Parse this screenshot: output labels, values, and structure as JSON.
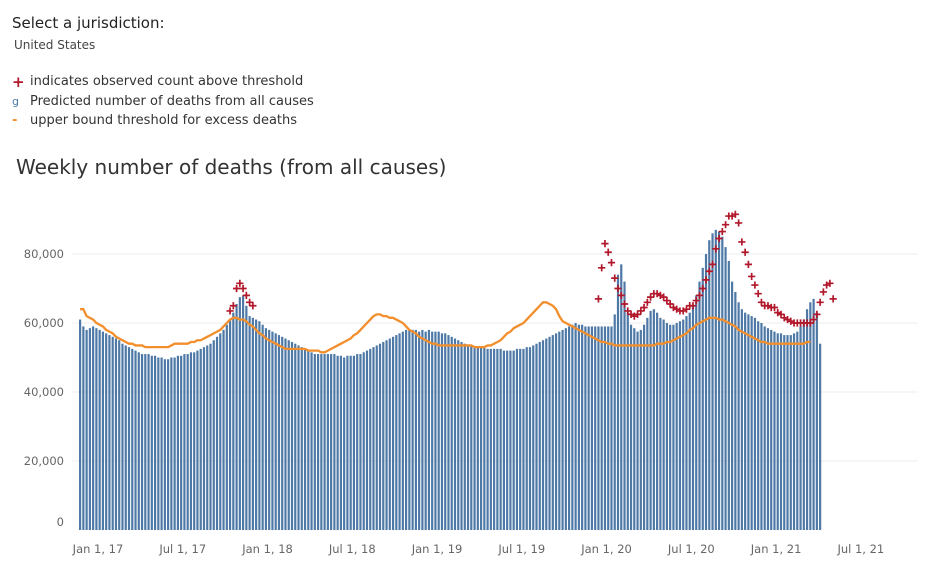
{
  "jurisdiction": {
    "label": "Select a jurisdiction:",
    "value": "United States"
  },
  "legend": [
    {
      "icon": "plus-icon",
      "symbol": "+",
      "label": "indicates observed count above threshold"
    },
    {
      "icon": "bar-glyph-icon",
      "symbol": "g",
      "label": "Predicted number of deaths from all causes"
    },
    {
      "icon": "dash-icon",
      "symbol": "-",
      "label": "upper bound threshold for excess deaths"
    }
  ],
  "colors": {
    "bar": "#4e79a7",
    "threshold": "#f28e2b",
    "marker": "#b2182b",
    "grid": "#ececec"
  },
  "chart_data": {
    "type": "bar",
    "title": "Weekly number of deaths (from all causes)",
    "xlabel": "",
    "ylabel": "",
    "ylim": [
      0,
      90000
    ],
    "yticks": [
      {
        "value": 0,
        "label": "0"
      },
      {
        "value": 20000,
        "label": "20,000"
      },
      {
        "value": 40000,
        "label": "40,000"
      },
      {
        "value": 60000,
        "label": "60,000"
      },
      {
        "value": 80000,
        "label": "80,000"
      }
    ],
    "xticks": [
      {
        "week": 0,
        "label": "Jan 1, 17"
      },
      {
        "week": 26,
        "label": "Jul 1, 17"
      },
      {
        "week": 52,
        "label": "Jan 1, 18"
      },
      {
        "week": 78,
        "label": "Jul 1, 18"
      },
      {
        "week": 104,
        "label": "Jan 1, 19"
      },
      {
        "week": 130,
        "label": "Jul 1, 19"
      },
      {
        "week": 156,
        "label": "Jan 1, 20"
      },
      {
        "week": 182,
        "label": "Jul 1, 20"
      },
      {
        "week": 208,
        "label": "Jan 1, 21"
      },
      {
        "week": 234,
        "label": "Jul 1, 21"
      }
    ],
    "grid": true,
    "series": [
      {
        "name": "Predicted number of deaths from all causes",
        "type": "bar",
        "values": [
          61000,
          59000,
          58000,
          58500,
          59000,
          58500,
          58000,
          57500,
          57000,
          56500,
          56000,
          55500,
          55000,
          54000,
          53500,
          53000,
          52500,
          52000,
          51500,
          51000,
          51000,
          51000,
          50500,
          50500,
          50000,
          50000,
          49500,
          49500,
          50000,
          50000,
          50500,
          50500,
          51000,
          51000,
          51500,
          51500,
          52000,
          52500,
          53000,
          53500,
          54000,
          55000,
          56000,
          57000,
          58000,
          59500,
          61000,
          63000,
          65500,
          67500,
          68000,
          65000,
          62000,
          61500,
          61000,
          60500,
          59500,
          58500,
          58000,
          57500,
          57000,
          56500,
          56000,
          55500,
          55000,
          54500,
          54000,
          53500,
          53000,
          52500,
          52000,
          51500,
          51000,
          51000,
          51000,
          51000,
          51000,
          51000,
          51000,
          50500,
          50500,
          50000,
          50500,
          50500,
          50500,
          51000,
          51000,
          51500,
          52000,
          52500,
          53000,
          53500,
          54000,
          54500,
          55000,
          55500,
          56000,
          56500,
          57000,
          57500,
          58000,
          58000,
          58000,
          58000,
          57500,
          58000,
          57500,
          58000,
          57500,
          57500,
          57500,
          57000,
          57000,
          56500,
          56000,
          55500,
          55000,
          54500,
          54000,
          53500,
          53500,
          53000,
          53000,
          53000,
          53000,
          52500,
          52500,
          52500,
          52500,
          52500,
          52000,
          52000,
          52000,
          52000,
          52500,
          52500,
          52500,
          53000,
          53000,
          53500,
          54000,
          54500,
          55000,
          55500,
          56000,
          56500,
          57000,
          57500,
          58000,
          58500,
          59000,
          59500,
          60000,
          59500,
          59500,
          59000,
          59000,
          59000,
          59000,
          59000,
          59000,
          59000,
          59000,
          59000,
          62500,
          74000,
          77000,
          72000,
          63000,
          59500,
          58500,
          57500,
          58000,
          59500,
          61500,
          63500,
          64000,
          63000,
          61500,
          61000,
          60000,
          59500,
          59500,
          60000,
          60500,
          61000,
          62000,
          63000,
          65000,
          68000,
          72000,
          76000,
          80000,
          84000,
          86000,
          87000,
          86500,
          85000,
          82000,
          78000,
          72000,
          69000,
          66000,
          64000,
          63000,
          62500,
          62000,
          61500,
          60500,
          60000,
          59000,
          58500,
          58000,
          57500,
          57000,
          57000,
          56500,
          56500,
          56500,
          57000,
          57500,
          59000,
          61000,
          64000,
          66000,
          67000,
          63000,
          54000
        ]
      },
      {
        "name": "upper bound threshold for excess deaths",
        "type": "line",
        "values": [
          64000,
          64000,
          62000,
          61500,
          61000,
          60000,
          59500,
          59000,
          58000,
          57500,
          57000,
          56000,
          55500,
          55000,
          54500,
          54000,
          54000,
          53500,
          53500,
          53500,
          53000,
          53000,
          53000,
          53000,
          53000,
          53000,
          53000,
          53000,
          53500,
          54000,
          54000,
          54000,
          54000,
          54000,
          54500,
          54500,
          55000,
          55000,
          55500,
          56000,
          56500,
          57000,
          57500,
          58000,
          59000,
          60000,
          61000,
          61500,
          61500,
          61000,
          61000,
          60500,
          59500,
          59000,
          58000,
          57000,
          56500,
          55500,
          55000,
          54500,
          54000,
          53500,
          53000,
          52500,
          52500,
          52500,
          52500,
          52500,
          52500,
          52500,
          52000,
          52000,
          52000,
          52000,
          51500,
          51500,
          52000,
          52500,
          53000,
          53500,
          54000,
          54500,
          55000,
          55500,
          56500,
          57000,
          58000,
          59000,
          60000,
          61000,
          62000,
          62500,
          62500,
          62000,
          62000,
          61500,
          61500,
          61000,
          60500,
          60000,
          59000,
          58000,
          57500,
          57000,
          56000,
          55500,
          55000,
          54500,
          54000,
          54000,
          53500,
          53500,
          53500,
          53500,
          53500,
          53500,
          53500,
          53500,
          53500,
          53500,
          53500,
          53000,
          53000,
          53000,
          53000,
          53500,
          53500,
          54000,
          54500,
          55000,
          56000,
          57000,
          57500,
          58500,
          59000,
          59500,
          60000,
          61000,
          62000,
          63000,
          64000,
          65000,
          66000,
          66000,
          65500,
          65000,
          64000,
          62000,
          60500,
          60000,
          59500,
          59000,
          58500,
          58000,
          57500,
          57000,
          56500,
          56000,
          55500,
          55000,
          54500,
          54500,
          54000,
          54000,
          53500,
          53500,
          53500,
          53500,
          53500,
          53500,
          53500,
          53500,
          53500,
          53500,
          53500,
          53500,
          53500,
          54000,
          54000,
          54000,
          54500,
          54500,
          55000,
          55500,
          56000,
          56500,
          57000,
          58000,
          58500,
          59500,
          60000,
          60500,
          61000,
          61500,
          61500,
          61500,
          61000,
          61000,
          60500,
          60000,
          59500,
          59000,
          58000,
          57500,
          57000,
          56500,
          56000,
          55500,
          55000,
          54500,
          54500,
          54000,
          54000,
          54000,
          54000,
          54000,
          54000,
          54000,
          54000,
          54000,
          54000,
          54000,
          54000,
          54500,
          54500
        ]
      },
      {
        "name": "indicates observed count above threshold",
        "type": "scatter",
        "points": [
          [
            46,
            63500
          ],
          [
            47,
            65000
          ],
          [
            48,
            70000
          ],
          [
            49,
            71500
          ],
          [
            50,
            70000
          ],
          [
            51,
            68000
          ],
          [
            52,
            66000
          ],
          [
            53,
            65000
          ],
          [
            159,
            67000
          ],
          [
            160,
            76000
          ],
          [
            161,
            83000
          ],
          [
            162,
            80500
          ],
          [
            163,
            77500
          ],
          [
            164,
            73000
          ],
          [
            165,
            70000
          ],
          [
            166,
            68000
          ],
          [
            167,
            65500
          ],
          [
            168,
            63500
          ],
          [
            169,
            62500
          ],
          [
            170,
            62000
          ],
          [
            171,
            62500
          ],
          [
            172,
            63500
          ],
          [
            173,
            64500
          ],
          [
            174,
            66000
          ],
          [
            175,
            67500
          ],
          [
            176,
            68500
          ],
          [
            177,
            68500
          ],
          [
            178,
            68000
          ],
          [
            179,
            67500
          ],
          [
            180,
            66500
          ],
          [
            181,
            65500
          ],
          [
            182,
            64500
          ],
          [
            183,
            64000
          ],
          [
            184,
            63500
          ],
          [
            185,
            63500
          ],
          [
            186,
            64000
          ],
          [
            187,
            65000
          ],
          [
            188,
            65000
          ],
          [
            189,
            66500
          ],
          [
            190,
            68000
          ],
          [
            191,
            70000
          ],
          [
            192,
            72500
          ],
          [
            193,
            75000
          ],
          [
            194,
            77000
          ],
          [
            195,
            81500
          ],
          [
            196,
            84500
          ],
          [
            197,
            86500
          ],
          [
            198,
            88500
          ],
          [
            199,
            91000
          ],
          [
            200,
            91000
          ],
          [
            201,
            91500
          ],
          [
            202,
            89000
          ],
          [
            203,
            83500
          ],
          [
            204,
            80500
          ],
          [
            205,
            77000
          ],
          [
            206,
            73500
          ],
          [
            207,
            71000
          ],
          [
            208,
            68500
          ],
          [
            209,
            66000
          ],
          [
            210,
            65000
          ],
          [
            211,
            65000
          ],
          [
            212,
            64500
          ],
          [
            213,
            64500
          ],
          [
            214,
            63000
          ],
          [
            215,
            62500
          ],
          [
            216,
            61500
          ],
          [
            217,
            61000
          ],
          [
            218,
            60500
          ],
          [
            219,
            60000
          ],
          [
            220,
            60000
          ],
          [
            221,
            60000
          ],
          [
            222,
            60000
          ],
          [
            223,
            60000
          ],
          [
            224,
            60000
          ],
          [
            225,
            61000
          ],
          [
            226,
            62500
          ],
          [
            227,
            66000
          ],
          [
            228,
            69000
          ],
          [
            229,
            71000
          ],
          [
            230,
            71500
          ],
          [
            231,
            67000
          ]
        ]
      }
    ]
  }
}
